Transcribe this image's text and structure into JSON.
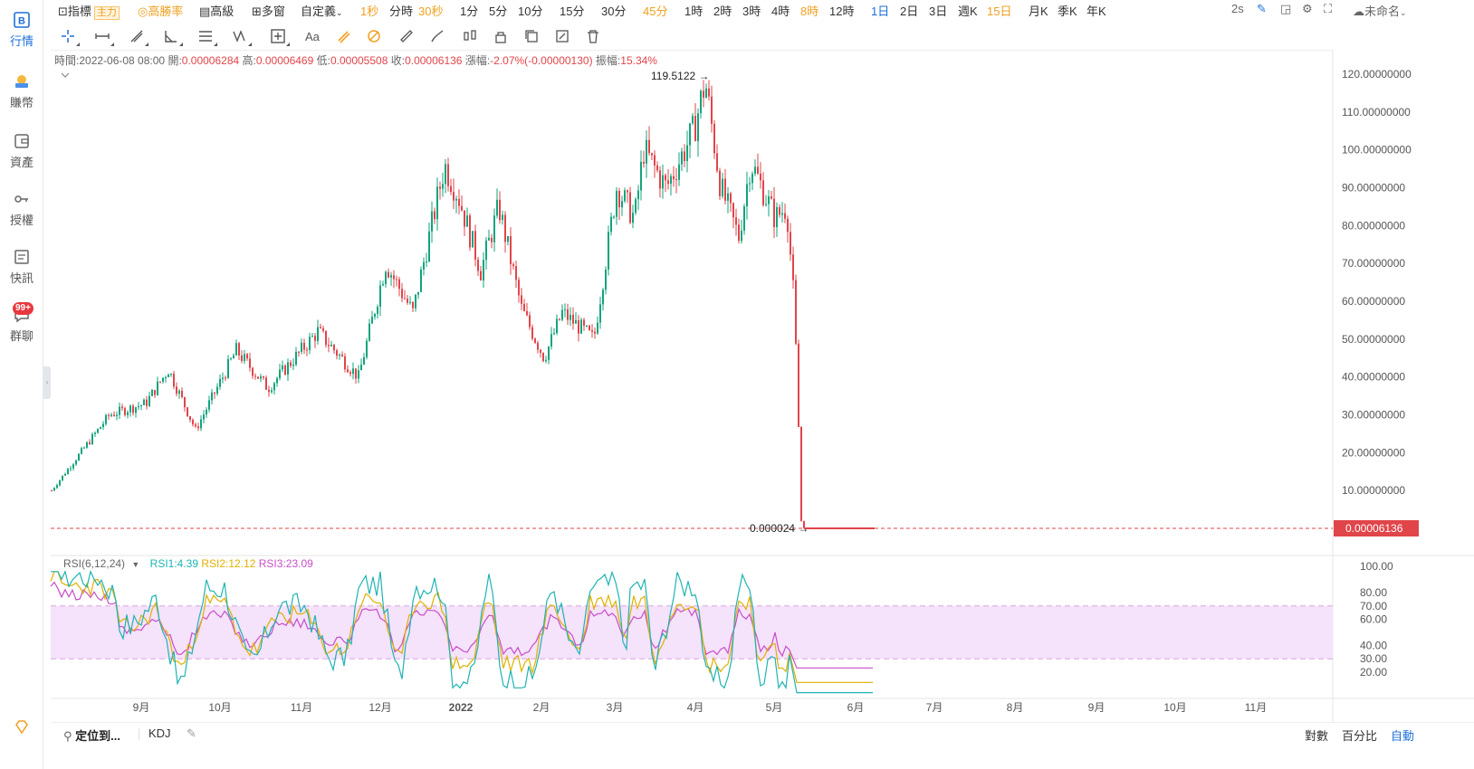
{
  "nav": {
    "items": [
      {
        "label": "行情",
        "icon": "market-logo-icon"
      },
      {
        "label": "賺幣",
        "icon": "earn-coin-icon"
      },
      {
        "label": "資產",
        "icon": "wallet-icon"
      },
      {
        "label": "授權",
        "icon": "key-icon"
      },
      {
        "label": "快訊",
        "icon": "news-icon"
      },
      {
        "label": "群聊",
        "icon": "chat-icon"
      }
    ],
    "chat_badge": "99+"
  },
  "topbar": {
    "indicators": "指標",
    "main_tag": "主力",
    "winrate": "高勝率",
    "advanced": "高級",
    "multiwindow": "多窗",
    "custom": "自定義",
    "intervals": [
      "1秒",
      "分時",
      "30秒",
      "1分",
      "5分",
      "10分",
      "15分",
      "30分",
      "45分",
      "1時",
      "2時",
      "3時",
      "4時",
      "8時",
      "12時",
      "1日",
      "2日",
      "3日",
      "週K",
      "15日",
      "月K",
      "季K",
      "年K"
    ],
    "interval_colors": [
      "orange",
      "",
      "orange",
      "",
      "",
      "",
      "",
      "",
      "orange",
      "",
      "",
      "",
      "",
      "orange",
      "",
      "blue",
      "",
      "",
      "",
      "orange",
      "",
      "",
      ""
    ],
    "refresh": "2s",
    "layout_name": "未命名"
  },
  "ohlc": {
    "time_label": "時間:",
    "time": "2022-06-08 08:00",
    "open_label": "開:",
    "open": "0.00006284",
    "high_label": "高:",
    "high": "0.00006469",
    "low_label": "低:",
    "low": "0.00005508",
    "close_label": "收:",
    "close": "0.00006136",
    "change_label": "漲幅:",
    "change": "-2.07%(-0.00000130)",
    "amp_label": "振幅:",
    "amp": "15.34%"
  },
  "chart_data": {
    "type": "candlestick",
    "price_axis": {
      "ticks": [
        "120.00000000",
        "110.00000000",
        "100.00000000",
        "90.00000000",
        "80.00000000",
        "70.00000000",
        "60.00000000",
        "50.00000000",
        "40.00000000",
        "30.00000000",
        "20.00000000",
        "10.00000000"
      ],
      "range": [
        0,
        120
      ]
    },
    "last_price": "0.00006136",
    "max_label": "119.5122",
    "min_label": "0.000024",
    "x_labels": [
      "9月",
      "10月",
      "11月",
      "12月",
      "2022",
      "2月",
      "3月",
      "4月",
      "5月",
      "6月",
      "7月",
      "8月",
      "9月",
      "10月",
      "11月"
    ],
    "monthly_path": {
      "months": [
        "2021-08",
        "2021-09",
        "2021-10",
        "2021-11",
        "2021-12",
        "2022-01",
        "2022-02",
        "2022-03",
        "2022-04",
        "2022-05",
        "2022-06"
      ],
      "approx_close": [
        15,
        30,
        38,
        48,
        55,
        93,
        48,
        90,
        95,
        80,
        6e-05
      ]
    },
    "rsi": {
      "legend": "RSI(6,12,24)",
      "rsi1_label": "RSI1:4.39",
      "rsi2_label": "RSI2:12.12",
      "rsi3_label": "RSI3:23.09",
      "rsi1": 4.39,
      "rsi2": 12.12,
      "rsi3": 23.09,
      "ticks": [
        "100.00",
        "80.00",
        "70.00",
        "60.00",
        "40.00",
        "30.00",
        "20.00"
      ],
      "band": [
        30,
        70
      ]
    },
    "colors": {
      "up": "#12a37d",
      "down": "#e0454a",
      "rsi1": "#1fb3b3",
      "rsi2": "#e0b000",
      "rsi3": "#c84ec8",
      "band": "#f5e2fb"
    }
  },
  "bottombar": {
    "locate": "定位到...",
    "indicator": "KDJ",
    "log": "對數",
    "percent": "百分比",
    "auto": "自動"
  }
}
